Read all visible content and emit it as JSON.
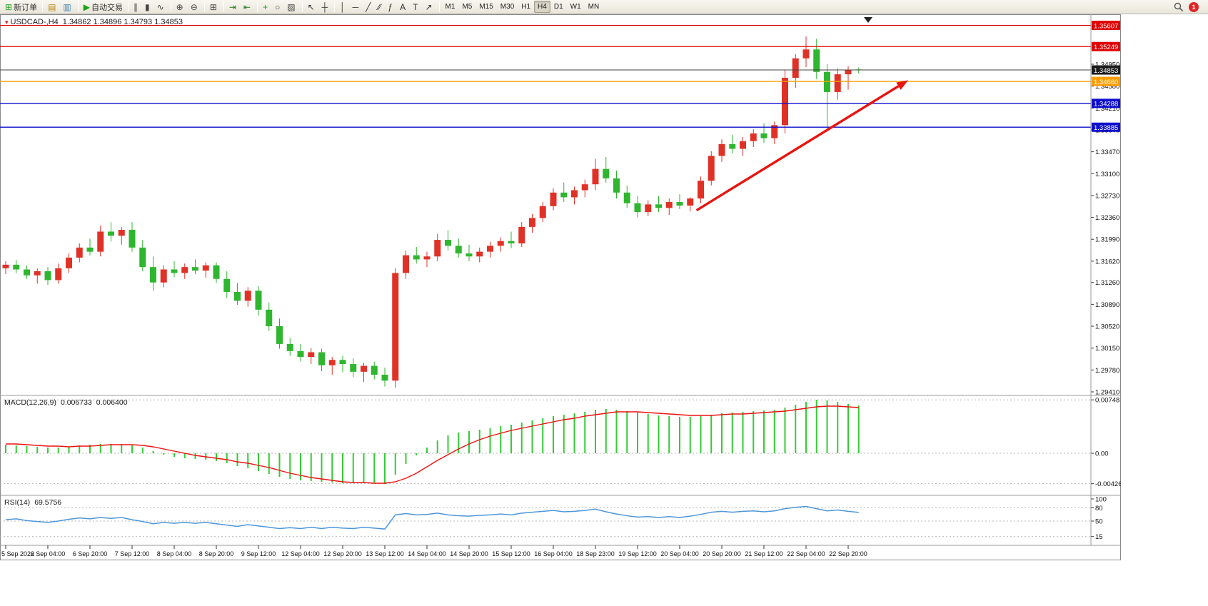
{
  "toolbar": {
    "notification_count": "1",
    "groups": [
      {
        "name": "orders",
        "buttons": [
          {
            "name": "new-order-button",
            "icon": "new-order-icon",
            "glyph": "⊞",
            "color": "#1e9c1e",
            "label": "新订单"
          }
        ]
      },
      {
        "name": "profiles",
        "buttons": [
          {
            "name": "charts-profile-button",
            "icon": "charts-profile-icon",
            "glyph": "▤",
            "color": "#b8860b"
          },
          {
            "name": "market-watch-button",
            "icon": "market-watch-icon",
            "glyph": "▥",
            "color": "#4682b4"
          }
        ]
      },
      {
        "name": "autotrade",
        "buttons": [
          {
            "name": "auto-trading-button",
            "icon": "auto-trading-icon",
            "glyph": "▶",
            "color": "#18a018",
            "label": "自动交易"
          }
        ]
      },
      {
        "name": "chart-types",
        "buttons": [
          {
            "name": "bar-chart-button",
            "icon": "bar-chart-icon",
            "glyph": "∥",
            "color": "#444"
          },
          {
            "name": "candlestick-chart-button",
            "icon": "candlestick-chart-icon",
            "glyph": "▮",
            "color": "#444"
          },
          {
            "name": "line-chart-button",
            "icon": "line-chart-icon",
            "glyph": "∿",
            "color": "#444"
          }
        ]
      },
      {
        "name": "zoom",
        "buttons": [
          {
            "name": "zoom-in-button",
            "icon": "zoom-in-icon",
            "glyph": "⊕",
            "color": "#444"
          },
          {
            "name": "zoom-out-button",
            "icon": "zoom-out-icon",
            "glyph": "⊖",
            "color": "#444"
          }
        ]
      },
      {
        "name": "windows",
        "buttons": [
          {
            "name": "tile-windows-button",
            "icon": "tile-windows-icon",
            "glyph": "⊞",
            "color": "#444"
          }
        ]
      },
      {
        "name": "navigate",
        "buttons": [
          {
            "name": "auto-scroll-button",
            "icon": "auto-scroll-icon",
            "glyph": "⇥",
            "color": "#1e7c1e"
          },
          {
            "name": "chart-shift-button",
            "icon": "chart-shift-icon",
            "glyph": "⇤",
            "color": "#1e7c1e"
          }
        ]
      },
      {
        "name": "insert",
        "buttons": [
          {
            "name": "indicators-button",
            "icon": "indicators-icon",
            "glyph": "+",
            "color": "#1e9c1e"
          },
          {
            "name": "periods-button",
            "icon": "periods-icon",
            "glyph": "○",
            "color": "#444"
          },
          {
            "name": "templates-button",
            "icon": "templates-icon",
            "glyph": "▨",
            "color": "#444"
          }
        ]
      },
      {
        "name": "cursor",
        "buttons": [
          {
            "name": "cursor-button",
            "icon": "cursor-icon",
            "glyph": "↖",
            "color": "#333"
          },
          {
            "name": "crosshair-button",
            "icon": "crosshair-icon",
            "glyph": "┼",
            "color": "#333"
          }
        ]
      },
      {
        "name": "objects",
        "buttons": [
          {
            "name": "vertical-line-button",
            "icon": "vertical-line-icon",
            "glyph": "│",
            "color": "#333"
          },
          {
            "name": "horizontal-line-button",
            "icon": "horizontal-line-icon",
            "glyph": "─",
            "color": "#333"
          },
          {
            "name": "trendline-button",
            "icon": "trendline-icon",
            "glyph": "╱",
            "color": "#333"
          },
          {
            "name": "channel-button",
            "icon": "channel-icon",
            "glyph": "∕∕",
            "color": "#333"
          },
          {
            "name": "fibonacci-button",
            "icon": "fibonacci-icon",
            "glyph": "ƒ",
            "color": "#333"
          },
          {
            "name": "text-button",
            "icon": "text-icon",
            "glyph": "A",
            "color": "#333"
          },
          {
            "name": "text-label-button",
            "icon": "text-label-icon",
            "glyph": "T",
            "color": "#333"
          },
          {
            "name": "arrows-button",
            "icon": "arrows-icon",
            "glyph": "↗",
            "color": "#333"
          }
        ]
      },
      {
        "name": "timeframes",
        "buttons": [
          {
            "name": "timeframe-m1-button",
            "label": "M1",
            "cls": "tf"
          },
          {
            "name": "timeframe-m5-button",
            "label": "M5",
            "cls": "tf"
          },
          {
            "name": "timeframe-m15-button",
            "label": "M15",
            "cls": "tf"
          },
          {
            "name": "timeframe-m30-button",
            "label": "M30",
            "cls": "tf"
          },
          {
            "name": "timeframe-h1-button",
            "label": "H1",
            "cls": "tf"
          },
          {
            "name": "timeframe-h4-button",
            "label": "H4",
            "cls": "tf",
            "active": true
          },
          {
            "name": "timeframe-d1-button",
            "label": "D1",
            "cls": "tf"
          },
          {
            "name": "timeframe-w1-button",
            "label": "W1",
            "cls": "tf"
          },
          {
            "name": "timeframe-mn-button",
            "label": "MN",
            "cls": "tf"
          }
        ]
      }
    ]
  },
  "chart": {
    "symbol_period": "USDCAD-,H4",
    "ohlc_text": "1.34862 1.34896 1.34793 1.34853"
  },
  "panes": {
    "macd_label": "MACD(12,26,9)",
    "macd_main_value": "0.006733",
    "macd_signal_value": "0.006400",
    "rsi_label": "RSI(14)",
    "rsi_value": "69.5756"
  },
  "chart_data": {
    "type": "candlestick",
    "symbol": "USDCAD-",
    "timeframe": "H4",
    "current_ohlc": [
      1.34862,
      1.34896,
      1.34793,
      1.34853
    ],
    "up_color": "#e03127",
    "down_color": "#2fb62f",
    "ylim": [
      1.2936,
      1.3568
    ],
    "candles": [
      [
        1.315,
        1.3162,
        1.314,
        1.3156
      ],
      [
        1.3156,
        1.3164,
        1.3142,
        1.3148
      ],
      [
        1.3148,
        1.3155,
        1.3132,
        1.3138
      ],
      [
        1.3138,
        1.315,
        1.3124,
        1.3145
      ],
      [
        1.3145,
        1.3152,
        1.3122,
        1.313
      ],
      [
        1.313,
        1.3158,
        1.3124,
        1.315
      ],
      [
        1.315,
        1.3175,
        1.3142,
        1.3168
      ],
      [
        1.3168,
        1.3192,
        1.316,
        1.3185
      ],
      [
        1.3185,
        1.32,
        1.3172,
        1.3178
      ],
      [
        1.3178,
        1.3222,
        1.317,
        1.3212
      ],
      [
        1.3212,
        1.3228,
        1.3195,
        1.3205
      ],
      [
        1.3205,
        1.322,
        1.319,
        1.3215
      ],
      [
        1.3215,
        1.3228,
        1.3178,
        1.3185
      ],
      [
        1.3185,
        1.3198,
        1.3145,
        1.3152
      ],
      [
        1.3152,
        1.317,
        1.3112,
        1.3126
      ],
      [
        1.3126,
        1.3155,
        1.3118,
        1.3148
      ],
      [
        1.3148,
        1.3162,
        1.3135,
        1.3142
      ],
      [
        1.3142,
        1.3158,
        1.3132,
        1.3152
      ],
      [
        1.3152,
        1.3165,
        1.314,
        1.3146
      ],
      [
        1.3146,
        1.316,
        1.3134,
        1.3155
      ],
      [
        1.3155,
        1.316,
        1.3125,
        1.3132
      ],
      [
        1.3132,
        1.3145,
        1.31,
        1.311
      ],
      [
        1.311,
        1.3125,
        1.3088,
        1.3095
      ],
      [
        1.3095,
        1.3118,
        1.3085,
        1.3112
      ],
      [
        1.3112,
        1.312,
        1.307,
        1.308
      ],
      [
        1.308,
        1.3092,
        1.3044,
        1.3052
      ],
      [
        1.3052,
        1.3065,
        1.3014,
        1.3022
      ],
      [
        1.3022,
        1.3032,
        1.3002,
        1.301
      ],
      [
        1.301,
        1.3022,
        1.2992,
        1.3
      ],
      [
        1.3,
        1.3015,
        1.2988,
        1.3008
      ],
      [
        1.3008,
        1.3014,
        1.2976,
        1.2986
      ],
      [
        1.2986,
        1.3,
        1.297,
        1.2995
      ],
      [
        1.2995,
        1.3002,
        1.2974,
        1.2988
      ],
      [
        1.2988,
        1.2998,
        1.2966,
        1.2975
      ],
      [
        1.2975,
        1.299,
        1.2958,
        1.2985
      ],
      [
        1.2985,
        1.2992,
        1.2962,
        1.297
      ],
      [
        1.297,
        1.2982,
        1.295,
        1.296
      ],
      [
        1.296,
        1.315,
        1.2948,
        1.3142
      ],
      [
        1.3142,
        1.318,
        1.3132,
        1.3172
      ],
      [
        1.3172,
        1.3186,
        1.3158,
        1.3165
      ],
      [
        1.3165,
        1.3178,
        1.3152,
        1.317
      ],
      [
        1.317,
        1.3208,
        1.3162,
        1.3198
      ],
      [
        1.3198,
        1.3215,
        1.318,
        1.3188
      ],
      [
        1.3188,
        1.32,
        1.3168,
        1.3175
      ],
      [
        1.3175,
        1.319,
        1.3162,
        1.317
      ],
      [
        1.317,
        1.3185,
        1.316,
        1.3178
      ],
      [
        1.3178,
        1.3195,
        1.3168,
        1.3188
      ],
      [
        1.3188,
        1.3202,
        1.3178,
        1.3196
      ],
      [
        1.3196,
        1.3212,
        1.3184,
        1.3192
      ],
      [
        1.3192,
        1.3228,
        1.3186,
        1.322
      ],
      [
        1.322,
        1.3242,
        1.321,
        1.3235
      ],
      [
        1.3235,
        1.3262,
        1.3228,
        1.3255
      ],
      [
        1.3255,
        1.3285,
        1.3248,
        1.3278
      ],
      [
        1.3278,
        1.3295,
        1.3262,
        1.327
      ],
      [
        1.327,
        1.3288,
        1.3258,
        1.3282
      ],
      [
        1.3282,
        1.33,
        1.327,
        1.3292
      ],
      [
        1.3292,
        1.3335,
        1.3282,
        1.3318
      ],
      [
        1.3318,
        1.3338,
        1.3295,
        1.3302
      ],
      [
        1.3302,
        1.3315,
        1.3268,
        1.3278
      ],
      [
        1.3278,
        1.329,
        1.3252,
        1.326
      ],
      [
        1.326,
        1.3272,
        1.3236,
        1.3245
      ],
      [
        1.3245,
        1.3265,
        1.3238,
        1.3258
      ],
      [
        1.3258,
        1.3272,
        1.3245,
        1.3252
      ],
      [
        1.3252,
        1.3268,
        1.324,
        1.3262
      ],
      [
        1.3262,
        1.3275,
        1.325,
        1.3256
      ],
      [
        1.3256,
        1.327,
        1.3246,
        1.3268
      ],
      [
        1.3268,
        1.3305,
        1.326,
        1.3298
      ],
      [
        1.3298,
        1.3348,
        1.329,
        1.334
      ],
      [
        1.334,
        1.3368,
        1.333,
        1.336
      ],
      [
        1.336,
        1.3376,
        1.3344,
        1.3352
      ],
      [
        1.3352,
        1.3372,
        1.334,
        1.3365
      ],
      [
        1.3365,
        1.3385,
        1.3355,
        1.3378
      ],
      [
        1.3378,
        1.3395,
        1.3362,
        1.337
      ],
      [
        1.337,
        1.3398,
        1.336,
        1.3392
      ],
      [
        1.3392,
        1.3485,
        1.3378,
        1.3472
      ],
      [
        1.3472,
        1.3512,
        1.3455,
        1.3505
      ],
      [
        1.3505,
        1.3542,
        1.349,
        1.352
      ],
      [
        1.352,
        1.3538,
        1.347,
        1.3482
      ],
      [
        1.3482,
        1.3495,
        1.3385,
        1.3448
      ],
      [
        1.3448,
        1.3488,
        1.3435,
        1.3478
      ],
      [
        1.3478,
        1.3492,
        1.3452,
        1.3486
      ],
      [
        1.34862,
        1.34896,
        1.34793,
        1.34853
      ]
    ],
    "time_labels": [
      "5 Sep 2022",
      "6 Sep 04:00",
      "6 Sep 20:00",
      "7 Sep 12:00",
      "8 Sep 04:00",
      "8 Sep 20:00",
      "9 Sep 12:00",
      "12 Sep 04:00",
      "12 Sep 20:00",
      "13 Sep 12:00",
      "14 Sep 04:00",
      "14 Sep 20:00",
      "15 Sep 12:00",
      "16 Sep 04:00",
      "18 Sep 23:00",
      "19 Sep 12:00",
      "20 Sep 04:00",
      "20 Sep 20:00",
      "21 Sep 12:00",
      "22 Sep 04:00",
      "22 Sep 20:00"
    ],
    "price_ticks": [
      "1.34950",
      "1.34580",
      "1.34210",
      "1.33840",
      "1.33470",
      "1.33100",
      "1.32730",
      "1.32360",
      "1.31990",
      "1.31620",
      "1.31260",
      "1.30890",
      "1.30520",
      "1.30150",
      "1.29780",
      "1.29410"
    ],
    "lines": [
      {
        "name": "resistance-line-1",
        "price": "1.35607",
        "color": "#e00000",
        "width": 1.2
      },
      {
        "name": "resistance-line-2",
        "price": "1.35249",
        "color": "#e00000",
        "width": 1.2
      },
      {
        "name": "bid-price-line",
        "price": "1.34853",
        "color": "#444444",
        "badge": "#1b1b1b",
        "width": 1
      },
      {
        "name": "pivot-line-orange",
        "price": "1.34660",
        "color": "#ff9d00",
        "width": 1.4
      },
      {
        "name": "support-line-1",
        "price": "1.34288",
        "color": "#0d0dcf",
        "width": 1.4
      },
      {
        "name": "support-line-2",
        "price": "1.33885",
        "color": "#0d0dcf",
        "width": 1.4
      }
    ],
    "trend_arrow": {
      "from_candle": 65.6,
      "from_price": 1.3248,
      "to_candle": 85.7,
      "to_price": 1.3468,
      "color": "#e8140f"
    },
    "macd": {
      "label": "MACD(12,26,9)",
      "main_value": 0.006733,
      "signal_value": 0.0064,
      "histogram_color": "#33cc33",
      "signal_color": "#ee1111",
      "axis_labels": [
        "0.00748",
        "0.00",
        "-0.004267"
      ],
      "histogram": [
        0.0012,
        0.0011,
        0.001,
        0.0009,
        0.0008,
        0.0008,
        0.0009,
        0.0011,
        0.0012,
        0.0013,
        0.0013,
        0.0013,
        0.0011,
        0.0008,
        0.0003,
        -0.0002,
        -0.0005,
        -0.0007,
        -0.0008,
        -0.0009,
        -0.0011,
        -0.0014,
        -0.0018,
        -0.0021,
        -0.0025,
        -0.0029,
        -0.0033,
        -0.0036,
        -0.0038,
        -0.0039,
        -0.004,
        -0.0041,
        -0.0042,
        -0.0042,
        -0.0042,
        -0.0042,
        -0.0043,
        -0.003,
        -0.0015,
        -0.0003,
        0.0008,
        0.0018,
        0.0025,
        0.0029,
        0.0031,
        0.0033,
        0.0035,
        0.0038,
        0.004,
        0.0043,
        0.0046,
        0.0049,
        0.0052,
        0.0054,
        0.0056,
        0.0058,
        0.0061,
        0.0062,
        0.0061,
        0.0059,
        0.0057,
        0.0055,
        0.0053,
        0.0052,
        0.0051,
        0.0051,
        0.0052,
        0.0054,
        0.0056,
        0.0057,
        0.0058,
        0.0059,
        0.006,
        0.0061,
        0.0064,
        0.0068,
        0.0072,
        0.0075,
        0.0074,
        0.0072,
        0.0069,
        0.0067
      ],
      "signal": [
        0.0013,
        0.0013,
        0.0012,
        0.0011,
        0.001,
        0.001,
        0.0009,
        0.001,
        0.001,
        0.0011,
        0.0012,
        0.0012,
        0.0012,
        0.0011,
        0.0009,
        0.0006,
        0.0003,
        0.0,
        -0.0003,
        -0.0005,
        -0.0007,
        -0.0009,
        -0.0012,
        -0.0014,
        -0.0017,
        -0.002,
        -0.0024,
        -0.0028,
        -0.0031,
        -0.0034,
        -0.0036,
        -0.0038,
        -0.004,
        -0.0041,
        -0.0041,
        -0.0042,
        -0.0042,
        -0.004,
        -0.0035,
        -0.0028,
        -0.0019,
        -0.001,
        -0.0002,
        0.0006,
        0.0013,
        0.0019,
        0.0024,
        0.0028,
        0.0032,
        0.0035,
        0.0038,
        0.0041,
        0.0044,
        0.0047,
        0.0049,
        0.0052,
        0.0054,
        0.0056,
        0.0058,
        0.0058,
        0.0058,
        0.0057,
        0.0056,
        0.0055,
        0.0054,
        0.0053,
        0.0053,
        0.0053,
        0.0054,
        0.0055,
        0.0055,
        0.0056,
        0.0057,
        0.0058,
        0.0059,
        0.0061,
        0.0063,
        0.0065,
        0.0066,
        0.0066,
        0.0065,
        0.0064
      ]
    },
    "rsi": {
      "label": "RSI(14)",
      "value": 69.5756,
      "line_color": "#4e97d9",
      "axis_labels": [
        "100",
        "80",
        "50",
        "15"
      ],
      "level_lines": [
        80,
        50,
        15
      ],
      "values": [
        53,
        55,
        51,
        49,
        47,
        50,
        54,
        57,
        55,
        58,
        56,
        58,
        53,
        49,
        44,
        47,
        45,
        47,
        45,
        47,
        44,
        41,
        38,
        42,
        39,
        36,
        33,
        35,
        33,
        36,
        33,
        36,
        34,
        33,
        36,
        34,
        32,
        64,
        67,
        64,
        65,
        68,
        64,
        62,
        61,
        63,
        64,
        66,
        64,
        68,
        70,
        72,
        74,
        71,
        72,
        74,
        77,
        71,
        66,
        62,
        59,
        60,
        58,
        60,
        58,
        61,
        65,
        70,
        72,
        70,
        72,
        73,
        71,
        73,
        78,
        81,
        83,
        78,
        73,
        75,
        72,
        69.6
      ]
    }
  }
}
